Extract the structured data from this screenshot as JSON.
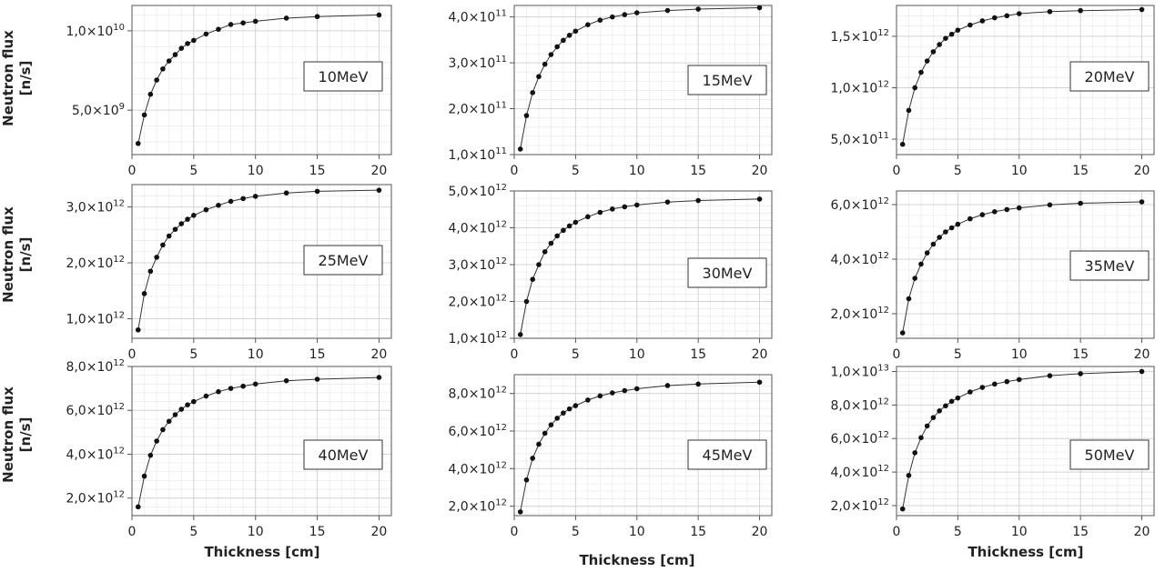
{
  "figure": {
    "ylabel_line1": "Neutron flux",
    "ylabel_line2": "[n/s]",
    "xlabel": "Thickness [cm]"
  },
  "chart_data": [
    {
      "type": "line",
      "label": "10MeV",
      "xlabel": "",
      "ylabel": "Neutron flux [n/s]",
      "xlim": [
        0,
        21
      ],
      "ylim": [
        2200000000,
        11600000000
      ],
      "grid": true,
      "x": [
        0.5,
        1,
        1.5,
        2,
        2.5,
        3,
        3.5,
        4,
        4.5,
        5,
        6,
        7,
        8,
        9,
        10,
        12.5,
        15,
        20
      ],
      "y": [
        2900000000,
        4700000000,
        6000000000,
        6900000000,
        7600000000,
        8100000000,
        8500000000,
        8900000000,
        9200000000,
        9400000000,
        9800000000,
        10100000000,
        10400000000,
        10500000000,
        10600000000,
        10800000000,
        10900000000,
        11000000000
      ],
      "yticks": [
        {
          "v": 5000000000,
          "m": "5,0",
          "e": "9"
        },
        {
          "v": 10000000000,
          "m": "1,0",
          "e": "10"
        }
      ]
    },
    {
      "type": "line",
      "label": "15MeV",
      "xlabel": "",
      "ylabel": "",
      "xlim": [
        0,
        21
      ],
      "ylim": [
        100000000000,
        425000000000
      ],
      "grid": true,
      "x": [
        0.5,
        1,
        1.5,
        2,
        2.5,
        3,
        3.5,
        4,
        4.5,
        5,
        6,
        7,
        8,
        9,
        10,
        12.5,
        15,
        20
      ],
      "y": [
        112000000000,
        185000000000,
        235000000000,
        270000000000,
        297000000000,
        318000000000,
        335000000000,
        349000000000,
        360000000000,
        369000000000,
        383000000000,
        393000000000,
        400000000000,
        405000000000,
        409000000000,
        414000000000,
        417000000000,
        420000000000
      ],
      "yticks": [
        {
          "v": 100000000000,
          "m": "1,0",
          "e": "11"
        },
        {
          "v": 200000000000,
          "m": "2,0",
          "e": "11"
        },
        {
          "v": 300000000000,
          "m": "3,0",
          "e": "11"
        },
        {
          "v": 400000000000,
          "m": "4,0",
          "e": "11"
        }
      ]
    },
    {
      "type": "line",
      "label": "20MeV",
      "xlabel": "",
      "ylabel": "",
      "xlim": [
        0,
        21
      ],
      "ylim": [
        350000000000,
        1800000000000
      ],
      "grid": true,
      "x": [
        0.5,
        1,
        1.5,
        2,
        2.5,
        3,
        3.5,
        4,
        4.5,
        5,
        6,
        7,
        8,
        9,
        10,
        12.5,
        15,
        20
      ],
      "y": [
        450000000000,
        780000000000,
        1000000000000,
        1150000000000,
        1260000000000,
        1350000000000,
        1420000000000,
        1480000000000,
        1520000000000,
        1560000000000,
        1610000000000,
        1650000000000,
        1680000000000,
        1700000000000,
        1720000000000,
        1740000000000,
        1750000000000,
        1760000000000
      ],
      "yticks": [
        {
          "v": 500000000000,
          "m": "5,0",
          "e": "11"
        },
        {
          "v": 1000000000000,
          "m": "1,0",
          "e": "12"
        },
        {
          "v": 1500000000000,
          "m": "1,5",
          "e": "12"
        }
      ]
    },
    {
      "type": "line",
      "label": "25MeV",
      "xlabel": "",
      "ylabel": "Neutron flux [n/s]",
      "xlim": [
        0,
        21
      ],
      "ylim": [
        650000000000,
        3400000000000
      ],
      "grid": true,
      "x": [
        0.5,
        1,
        1.5,
        2,
        2.5,
        3,
        3.5,
        4,
        4.5,
        5,
        6,
        7,
        8,
        9,
        10,
        12.5,
        15,
        20
      ],
      "y": [
        800000000000,
        1450000000000,
        1850000000000,
        2100000000000,
        2320000000000,
        2480000000000,
        2600000000000,
        2700000000000,
        2780000000000,
        2850000000000,
        2950000000000,
        3030000000000,
        3100000000000,
        3150000000000,
        3190000000000,
        3250000000000,
        3280000000000,
        3300000000000
      ],
      "yticks": [
        {
          "v": 1000000000000,
          "m": "1,0",
          "e": "12"
        },
        {
          "v": 2000000000000,
          "m": "2,0",
          "e": "12"
        },
        {
          "v": 3000000000000,
          "m": "3,0",
          "e": "12"
        }
      ]
    },
    {
      "type": "line",
      "label": "30MeV",
      "xlabel": "",
      "ylabel": "",
      "xlim": [
        0,
        21
      ],
      "ylim": [
        1000000000000,
        5000000000000
      ],
      "grid": true,
      "x": [
        0.5,
        1,
        1.5,
        2,
        2.5,
        3,
        3.5,
        4,
        4.5,
        5,
        6,
        7,
        8,
        9,
        10,
        12.5,
        15,
        20
      ],
      "y": [
        1100000000000,
        2000000000000,
        2600000000000,
        3000000000000,
        3350000000000,
        3580000000000,
        3780000000000,
        3930000000000,
        4050000000000,
        4150000000000,
        4300000000000,
        4420000000000,
        4510000000000,
        4570000000000,
        4620000000000,
        4700000000000,
        4740000000000,
        4780000000000
      ],
      "yticks": [
        {
          "v": 1000000000000,
          "m": "1,0",
          "e": "12"
        },
        {
          "v": 2000000000000,
          "m": "2,0",
          "e": "12"
        },
        {
          "v": 3000000000000,
          "m": "3,0",
          "e": "12"
        },
        {
          "v": 4000000000000,
          "m": "4,0",
          "e": "12"
        },
        {
          "v": 5000000000000,
          "m": "5,0",
          "e": "12"
        }
      ]
    },
    {
      "type": "line",
      "label": "35MeV",
      "xlabel": "",
      "ylabel": "",
      "xlim": [
        0,
        21
      ],
      "ylim": [
        1100000000000,
        6500000000000
      ],
      "grid": true,
      "x": [
        0.5,
        1,
        1.5,
        2,
        2.5,
        3,
        3.5,
        4,
        4.5,
        5,
        6,
        7,
        8,
        9,
        10,
        12.5,
        15,
        20
      ],
      "y": [
        1300000000000,
        2550000000000,
        3300000000000,
        3820000000000,
        4230000000000,
        4550000000000,
        4800000000000,
        5000000000000,
        5150000000000,
        5280000000000,
        5480000000000,
        5630000000000,
        5740000000000,
        5820000000000,
        5880000000000,
        5990000000000,
        6050000000000,
        6100000000000
      ],
      "yticks": [
        {
          "v": 2000000000000,
          "m": "2,0",
          "e": "12"
        },
        {
          "v": 4000000000000,
          "m": "4,0",
          "e": "12"
        },
        {
          "v": 6000000000000,
          "m": "6,0",
          "e": "12"
        }
      ]
    },
    {
      "type": "line",
      "label": "40MeV",
      "xlabel": "Thickness [cm]",
      "ylabel": "Neutron flux [n/s]",
      "xlim": [
        0,
        21
      ],
      "ylim": [
        1200000000000,
        8000000000000
      ],
      "grid": true,
      "x": [
        0.5,
        1,
        1.5,
        2,
        2.5,
        3,
        3.5,
        4,
        4.5,
        5,
        6,
        7,
        8,
        9,
        10,
        12.5,
        15,
        20
      ],
      "y": [
        1600000000000,
        3000000000000,
        3950000000000,
        4600000000000,
        5120000000000,
        5500000000000,
        5800000000000,
        6050000000000,
        6250000000000,
        6400000000000,
        6650000000000,
        6850000000000,
        7000000000000,
        7100000000000,
        7200000000000,
        7350000000000,
        7420000000000,
        7500000000000
      ],
      "yticks": [
        {
          "v": 2000000000000,
          "m": "2,0",
          "e": "12"
        },
        {
          "v": 4000000000000,
          "m": "4,0",
          "e": "12"
        },
        {
          "v": 6000000000000,
          "m": "6,0",
          "e": "12"
        },
        {
          "v": 8000000000000,
          "m": "8,0",
          "e": "12"
        }
      ]
    },
    {
      "type": "line",
      "label": "45MeV",
      "xlabel": "Thickness [cm]",
      "ylabel": "",
      "xlim": [
        0,
        21
      ],
      "ylim": [
        1500000000000,
        9000000000000
      ],
      "grid": true,
      "x": [
        0.5,
        1,
        1.5,
        2,
        2.5,
        3,
        3.5,
        4,
        4.5,
        5,
        6,
        7,
        8,
        9,
        10,
        12.5,
        15,
        20
      ],
      "y": [
        1700000000000,
        3400000000000,
        4550000000000,
        5300000000000,
        5880000000000,
        6330000000000,
        6680000000000,
        6960000000000,
        7180000000000,
        7350000000000,
        7650000000000,
        7870000000000,
        8030000000000,
        8150000000000,
        8250000000000,
        8420000000000,
        8500000000000,
        8600000000000
      ],
      "yticks": [
        {
          "v": 2000000000000,
          "m": "2,0",
          "e": "12"
        },
        {
          "v": 4000000000000,
          "m": "4,0",
          "e": "12"
        },
        {
          "v": 6000000000000,
          "m": "6,0",
          "e": "12"
        },
        {
          "v": 8000000000000,
          "m": "8,0",
          "e": "12"
        }
      ]
    },
    {
      "type": "line",
      "label": "50MeV",
      "xlabel": "Thickness [cm]",
      "ylabel": "",
      "xlim": [
        0,
        21
      ],
      "ylim": [
        1400000000000,
        10300000000000
      ],
      "grid": true,
      "x": [
        0.5,
        1,
        1.5,
        2,
        2.5,
        3,
        3.5,
        4,
        4.5,
        5,
        6,
        7,
        8,
        9,
        10,
        12.5,
        15,
        20
      ],
      "y": [
        1800000000000,
        3800000000000,
        5150000000000,
        6050000000000,
        6750000000000,
        7250000000000,
        7650000000000,
        7950000000000,
        8220000000000,
        8420000000000,
        8780000000000,
        9050000000000,
        9250000000000,
        9400000000000,
        9520000000000,
        9750000000000,
        9870000000000,
        10000000000000
      ],
      "yticks": [
        {
          "v": 2000000000000,
          "m": "2,0",
          "e": "12"
        },
        {
          "v": 4000000000000,
          "m": "4,0",
          "e": "12"
        },
        {
          "v": 6000000000000,
          "m": "6,0",
          "e": "12"
        },
        {
          "v": 8000000000000,
          "m": "8,0",
          "e": "12"
        },
        {
          "v": 10000000000000,
          "m": "1,0",
          "e": "13"
        }
      ]
    }
  ]
}
